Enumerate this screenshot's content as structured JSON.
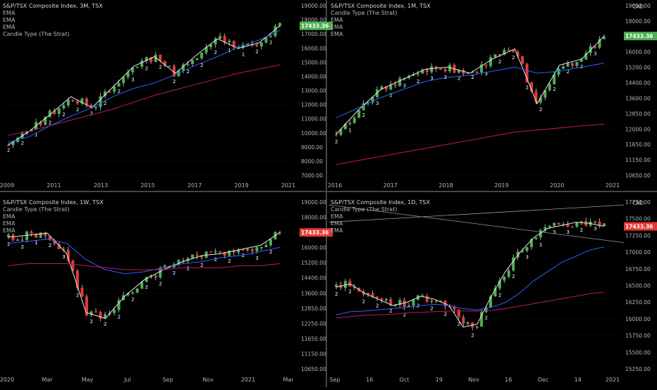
{
  "panels": [
    {
      "title": "S&P/TSX Composite Index, 3M, TSX",
      "legend": [
        "EMA",
        "EMA",
        "EMA",
        "Candle Type (The Strat)"
      ],
      "currency": "",
      "price_badge": "17433.36",
      "badge_color": "#4caf50",
      "y_ticks": [
        "19000.00",
        "18000.00",
        "17000.00",
        "16000.00",
        "15000.00",
        "14000.00",
        "13000.00",
        "12000.00",
        "11000.00",
        "10000.00",
        "9000.00",
        "8000.00",
        "7000.00"
      ],
      "x_ticks": [
        "2009",
        "2011",
        "2013",
        "2015",
        "2017",
        "2019",
        "2021"
      ]
    },
    {
      "title": "S&P/TSX Composite Index, 1M, TSX",
      "legend": [
        "Candle Type (The Strat)",
        "EMA",
        "EMA",
        "EMA"
      ],
      "currency": "CAD",
      "price_badge": "17433.36",
      "badge_color": "#4caf50",
      "y_ticks": [
        "19000.00",
        "18000.00",
        "17200.00",
        "16000.00",
        "15200.00",
        "14400.00",
        "13600.00",
        "12850.00",
        "12000.00",
        "11650.00",
        "11150.00",
        "10650.00"
      ],
      "x_ticks": [
        "2016",
        "2017",
        "2018",
        "2019",
        "2020",
        "2021"
      ]
    },
    {
      "title": "S&P/TSX Composite Index, 1W, TSX",
      "legend": [
        "Candle Type (The Strat)",
        "EMA",
        "EMA",
        "EMA"
      ],
      "currency": "",
      "price_badge": "17433.36",
      "badge_color": "#e53935",
      "y_ticks": [
        "19000.00",
        "18000.00",
        "17000.00",
        "16000.00",
        "15200.00",
        "14400.00",
        "13600.00",
        "12850.00",
        "12250.00",
        "11650.00",
        "11150.00",
        "10650.00"
      ],
      "x_ticks": [
        "2020",
        "Mar",
        "May",
        "Jul",
        "Sep",
        "Nov",
        "2021",
        "Mar"
      ]
    },
    {
      "title": "S&P/TSX Composite Index, 1D, TSX",
      "legend": [
        "Candle Type (The Strat)",
        "EMA",
        "EMA",
        "EMA"
      ],
      "currency": "CAD",
      "price_badge": "17433.36",
      "badge_color": "#e53935",
      "y_ticks": [
        "17750.00",
        "17500.00",
        "17250.00",
        "17000.00",
        "16750.00",
        "16500.00",
        "16250.00",
        "16000.00",
        "15750.00",
        "15500.00",
        "15250.00"
      ],
      "x_ticks": [
        "Sep",
        "16",
        "Oct",
        "19",
        "Nov",
        "16",
        "Dec",
        "14",
        "2021"
      ]
    }
  ],
  "colors": {
    "up": "#4caf50",
    "down": "#e53935",
    "ema_fast": "#e6e6e6",
    "ema_mid": "#2962ff",
    "ema_slow": "#c2185b",
    "grid": "#2a2e39",
    "text": "#b2b5be"
  },
  "chart_data": [
    {
      "type": "line",
      "title": "S&P/TSX Composite Index, 3M, TSX",
      "note": "candlestick chart, quarterly",
      "x_range": [
        "2009",
        "2021"
      ],
      "ylim": [
        6500,
        19000
      ],
      "last_price": 17433.36,
      "series": [
        {
          "values": [
            8800,
            9800,
            11000,
            12300,
            11500,
            13000,
            14500,
            15200,
            14000,
            15300,
            16500,
            15800,
            16200,
            17433
          ]
        },
        {
          "values": [
            9000,
            9400,
            10200,
            10900,
            11500,
            12300,
            12900,
            13300,
            13900,
            14600,
            15200,
            15900,
            16400,
            17100
          ]
        },
        {
          "values": [
            9500,
            9800,
            10200,
            10600,
            11000,
            11400,
            11900,
            12400,
            12800,
            13200,
            13600,
            14000,
            14300,
            14600
          ]
        }
      ]
    },
    {
      "type": "line",
      "title": "S&P/TSX Composite Index, 1M, TSX",
      "note": "candlestick chart, monthly",
      "x_range": [
        "2016",
        "2021"
      ],
      "ylim": [
        10500,
        19000
      ],
      "last_price": 17433.36,
      "series": [
        {
          "values": [
            12600,
            13800,
            14800,
            15300,
            15800,
            15900,
            15600,
            16300,
            16800,
            14100,
            16000,
            16300,
            17433
          ]
        },
        {
          "values": [
            13400,
            13900,
            14400,
            14800,
            15200,
            15400,
            15500,
            15700,
            15900,
            15600,
            15700,
            15900,
            16100
          ]
        },
        {
          "values": [
            11100,
            11300,
            11500,
            11700,
            11900,
            12100,
            12300,
            12500,
            12700,
            12800,
            12900,
            13000,
            13100
          ]
        }
      ]
    },
    {
      "type": "line",
      "title": "S&P/TSX Composite Index, 1W, TSX",
      "note": "candlestick chart, weekly",
      "x_range": [
        "2020",
        "Mar"
      ],
      "ylim": [
        10650,
        19000
      ],
      "last_price": 17433.36,
      "series": [
        {
          "values": [
            17200,
            17300,
            17400,
            16400,
            13500,
            13200,
            14300,
            15100,
            15600,
            16000,
            16300,
            16400,
            16600,
            16800,
            17433
          ]
        },
        {
          "values": [
            16900,
            17000,
            17100,
            16900,
            16100,
            15600,
            15400,
            15500,
            15700,
            15900,
            16000,
            16200,
            16300,
            16500,
            16700
          ]
        },
        {
          "values": [
            15800,
            15900,
            15900,
            15900,
            15800,
            15700,
            15600,
            15600,
            15600,
            15700,
            15700,
            15700,
            15800,
            15800,
            15900
          ]
        }
      ]
    },
    {
      "type": "line",
      "title": "S&P/TSX Composite Index, 1D, TSX",
      "note": "candlestick chart, daily",
      "x_range": [
        "Sep",
        "2021"
      ],
      "ylim": [
        15100,
        17850
      ],
      "last_price": 17433.36,
      "series": [
        {
          "values": [
            16450,
            16500,
            16350,
            16250,
            16150,
            16200,
            16300,
            16250,
            16150,
            15800,
            15850,
            16300,
            16700,
            17000,
            17250,
            17400,
            17450,
            17500,
            17480,
            17433
          ]
        },
        {
          "values": [
            16000,
            16050,
            16060,
            16080,
            16100,
            16120,
            16150,
            16170,
            16150,
            16100,
            16080,
            16120,
            16200,
            16350,
            16550,
            16700,
            16850,
            16950,
            17050,
            17100
          ]
        },
        {
          "values": [
            15950,
            15970,
            15990,
            16000,
            16010,
            16030,
            16040,
            16050,
            16060,
            16060,
            16060,
            16070,
            16100,
            16140,
            16180,
            16220,
            16260,
            16300,
            16340,
            16370
          ]
        }
      ]
    }
  ]
}
